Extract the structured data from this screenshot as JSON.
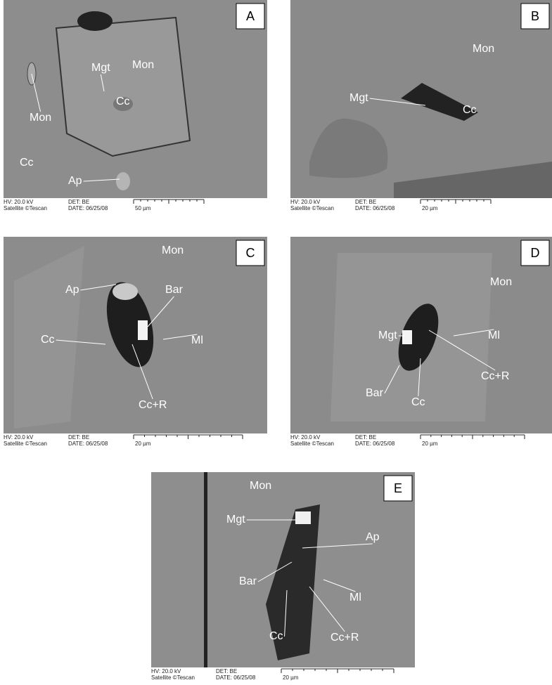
{
  "panels": [
    {
      "letter": "A",
      "labels": [
        "Mgt",
        "Mon",
        "Cc",
        "Mon",
        "Cc",
        "Ap"
      ],
      "footer": {
        "hv": "HV: 20.0 kV",
        "det": "DET: BE",
        "vendor": "Satellite ©Tescan",
        "date": "DATE: 06/25/08",
        "scale": "50 µm"
      }
    },
    {
      "letter": "B",
      "labels": [
        "Mon",
        "Mgt",
        "Cc"
      ],
      "footer": {
        "hv": "HV: 20.0 kV",
        "det": "DET: BE",
        "vendor": "Satellite ©Tescan",
        "date": "DATE: 06/25/08",
        "scale": "20 µm"
      }
    },
    {
      "letter": "C",
      "labels": [
        "Mon",
        "Ap",
        "Bar",
        "Cc",
        "Ml",
        "Cc+R"
      ],
      "footer": {
        "hv": "HV: 20.0 kV",
        "det": "DET: BE",
        "vendor": "Satellite ©Tescan",
        "date": "DATE: 06/25/08",
        "scale": "20 µm"
      }
    },
    {
      "letter": "D",
      "labels": [
        "Mon",
        "Mgt",
        "Ml",
        "Cc+R",
        "Bar",
        "Cc"
      ],
      "footer": {
        "hv": "HV: 20.0 kV",
        "det": "DET: BE",
        "vendor": "Satellite ©Tescan",
        "date": "DATE: 06/25/08",
        "scale": "20 µm"
      }
    },
    {
      "letter": "E",
      "labels": [
        "Mon",
        "Mgt",
        "Ap",
        "Bar",
        "Ml",
        "Cc",
        "Cc+R"
      ],
      "footer": {
        "hv": "HV: 20.0 kV",
        "det": "DET: BE",
        "vendor": "Satellite ©Tescan",
        "date": "DATE: 06/25/08",
        "scale": "20 µm"
      }
    }
  ]
}
